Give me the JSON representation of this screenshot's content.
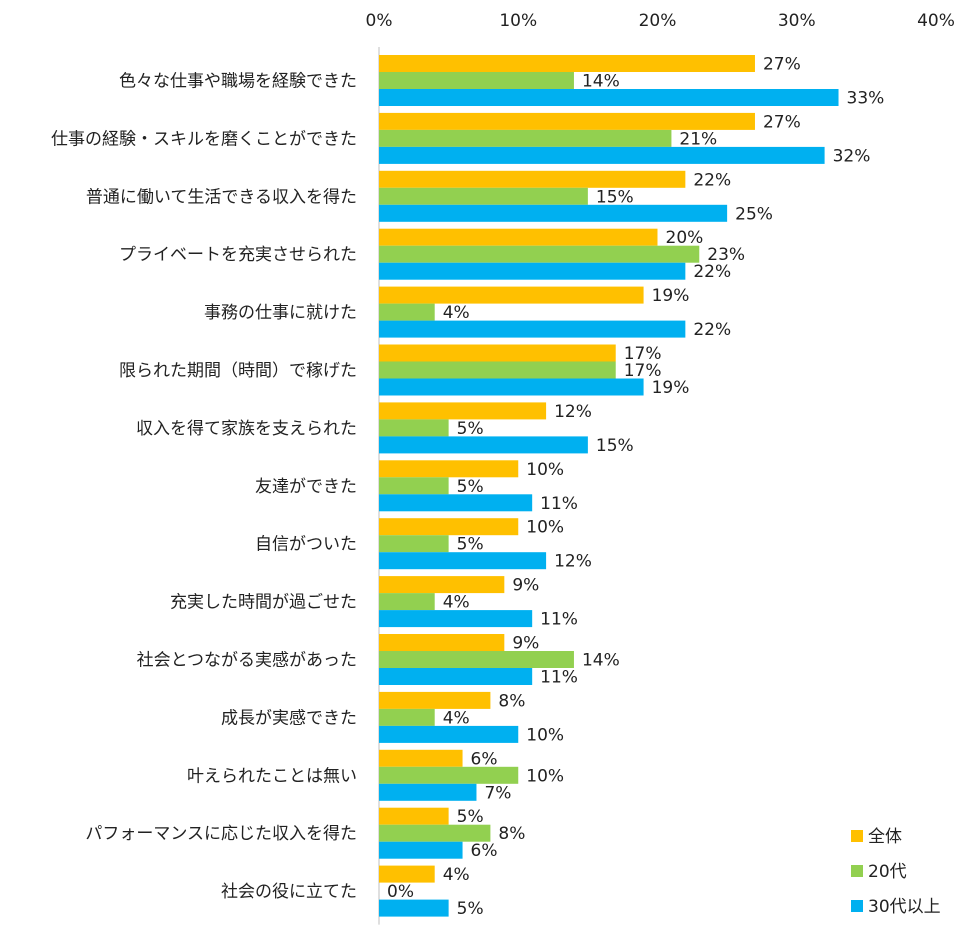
{
  "chart_data": {
    "type": "bar",
    "orientation": "horizontal",
    "xlim": [
      0,
      40
    ],
    "x_ticks": [
      "0%",
      "10%",
      "20%",
      "30%",
      "40%"
    ],
    "grid": false,
    "legend_position": "bottom-right",
    "categories": [
      "色々な仕事や職場を経験できた",
      "仕事の経験・スキルを磨くことができた",
      "普通に働いて生活できる収入を得た",
      "プライベートを充実させられた",
      "事務の仕事に就けた",
      "限られた期間（時間）で稼げた",
      "収入を得て家族を支えられた",
      "友達ができた",
      "自信がついた",
      "充実した時間が過ごせた",
      "社会とつながる実感があった",
      "成長が実感できた",
      "叶えられたことは無い",
      "パフォーマンスに応じた収入を得た",
      "社会の役に立てた"
    ],
    "series": [
      {
        "name": "全体",
        "color": "#FFC000",
        "values": [
          27,
          27,
          22,
          20,
          19,
          17,
          12,
          10,
          10,
          9,
          9,
          8,
          6,
          5,
          4
        ]
      },
      {
        "name": "20代",
        "color": "#92D050",
        "values": [
          14,
          21,
          15,
          23,
          4,
          17,
          5,
          5,
          5,
          4,
          14,
          4,
          10,
          8,
          0
        ]
      },
      {
        "name": "30代以上",
        "color": "#00B0F0",
        "values": [
          33,
          32,
          25,
          22,
          22,
          19,
          15,
          11,
          12,
          11,
          11,
          10,
          7,
          6,
          5
        ]
      }
    ],
    "value_suffix": "%"
  }
}
